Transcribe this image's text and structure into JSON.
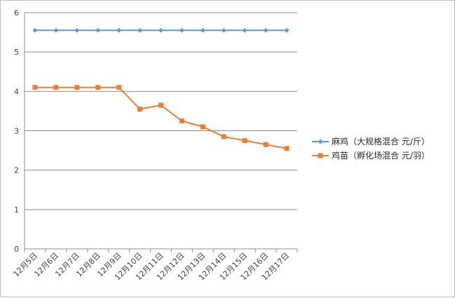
{
  "chart_data": {
    "type": "line",
    "title": "",
    "xlabel": "",
    "ylabel": "",
    "categories": [
      "12月5日",
      "12月6日",
      "12月7日",
      "12月8日",
      "12月9日",
      "12月10日",
      "12月11日",
      "12月12日",
      "12月13日",
      "12月14日",
      "12月15日",
      "12月16日",
      "12月17日"
    ],
    "ylim": [
      0,
      6
    ],
    "yticks": [
      "0",
      "1",
      "2",
      "3",
      "4",
      "5",
      "6"
    ],
    "grid": true,
    "legend_position": "right",
    "series": [
      {
        "name": "麻鸡（大规格混合 元/斤）",
        "color": "#5b9bd5",
        "marker": "diamond",
        "values": [
          5.55,
          5.55,
          5.55,
          5.55,
          5.55,
          5.55,
          5.55,
          5.55,
          5.55,
          5.55,
          5.55,
          5.55,
          5.55
        ]
      },
      {
        "name": "鸡苗（孵化场混合 元/羽）",
        "color": "#ed7d31",
        "marker": "square",
        "values": [
          4.1,
          4.1,
          4.1,
          4.1,
          4.1,
          3.55,
          3.65,
          3.25,
          3.1,
          2.85,
          2.75,
          2.65,
          2.55
        ]
      }
    ]
  }
}
